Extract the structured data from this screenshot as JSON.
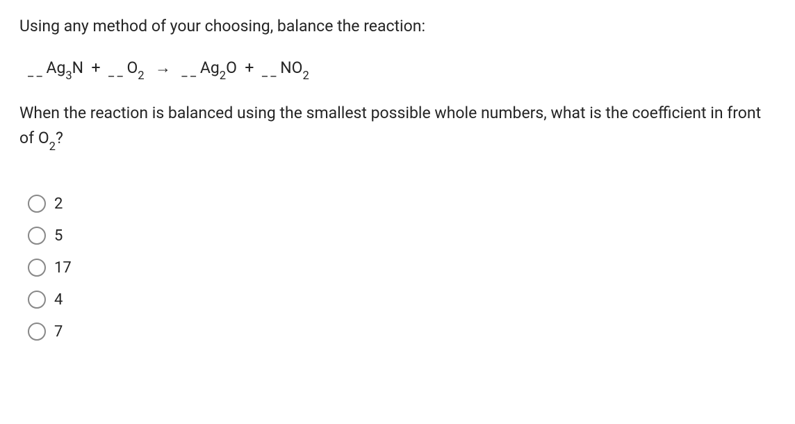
{
  "question": {
    "prompt": "Using any method of your choosing, balance the reaction:",
    "followup_pre": "When the reaction is balanced using the smallest possible whole numbers, what is the coefficient in front of O",
    "followup_sub": "2",
    "followup_post": "?"
  },
  "equation": {
    "blank": "_ _",
    "t1a": "Ag",
    "t1s": "3",
    "t1b": "N",
    "plus": "+",
    "t2a": "O",
    "t2s": "2",
    "arrow": "→",
    "t3a": "Ag",
    "t3s": "2",
    "t3b": "O",
    "t4a": "NO",
    "t4s": "2"
  },
  "options": [
    {
      "label": "2"
    },
    {
      "label": "5"
    },
    {
      "label": "17"
    },
    {
      "label": "4"
    },
    {
      "label": "7"
    }
  ],
  "style": {
    "text_color": "#242424",
    "radio_border": "#888888",
    "bg": "#ffffff",
    "font_size_body": 23,
    "font_size_option": 22,
    "radio_size": 26
  }
}
